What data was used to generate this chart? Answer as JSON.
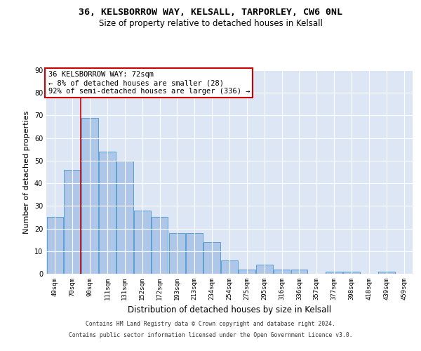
{
  "title_line1": "36, KELSBORROW WAY, KELSALL, TARPORLEY, CW6 0NL",
  "title_line2": "Size of property relative to detached houses in Kelsall",
  "xlabel": "Distribution of detached houses by size in Kelsall",
  "ylabel": "Number of detached properties",
  "categories": [
    "49sqm",
    "70sqm",
    "90sqm",
    "111sqm",
    "131sqm",
    "152sqm",
    "172sqm",
    "193sqm",
    "213sqm",
    "234sqm",
    "254sqm",
    "275sqm",
    "295sqm",
    "316sqm",
    "336sqm",
    "357sqm",
    "377sqm",
    "398sqm",
    "418sqm",
    "439sqm",
    "459sqm"
  ],
  "values": [
    25,
    46,
    69,
    54,
    50,
    28,
    25,
    18,
    18,
    14,
    6,
    2,
    4,
    2,
    2,
    0,
    1,
    1,
    0,
    1,
    0
  ],
  "bar_color": "#aec6e8",
  "bar_edge_color": "#5a9fd4",
  "red_line_x": 1.48,
  "highlight_color": "#cc0000",
  "ylim": [
    0,
    90
  ],
  "yticks": [
    0,
    10,
    20,
    30,
    40,
    50,
    60,
    70,
    80,
    90
  ],
  "annotation_text": "36 KELSBORROW WAY: 72sqm\n← 8% of detached houses are smaller (28)\n92% of semi-detached houses are larger (336) →",
  "annotation_box_edgecolor": "#cc0000",
  "footer_line1": "Contains HM Land Registry data © Crown copyright and database right 2024.",
  "footer_line2": "Contains public sector information licensed under the Open Government Licence v3.0.",
  "plot_bg_color": "#dce6f5",
  "grid_color": "#ffffff",
  "fig_bg_color": "#ffffff",
  "title_fontsize": 9.5,
  "subtitle_fontsize": 8.5,
  "tick_fontsize": 6.5,
  "ylabel_fontsize": 8,
  "xlabel_fontsize": 8.5,
  "footer_fontsize": 5.8,
  "annotation_fontsize": 7.5
}
